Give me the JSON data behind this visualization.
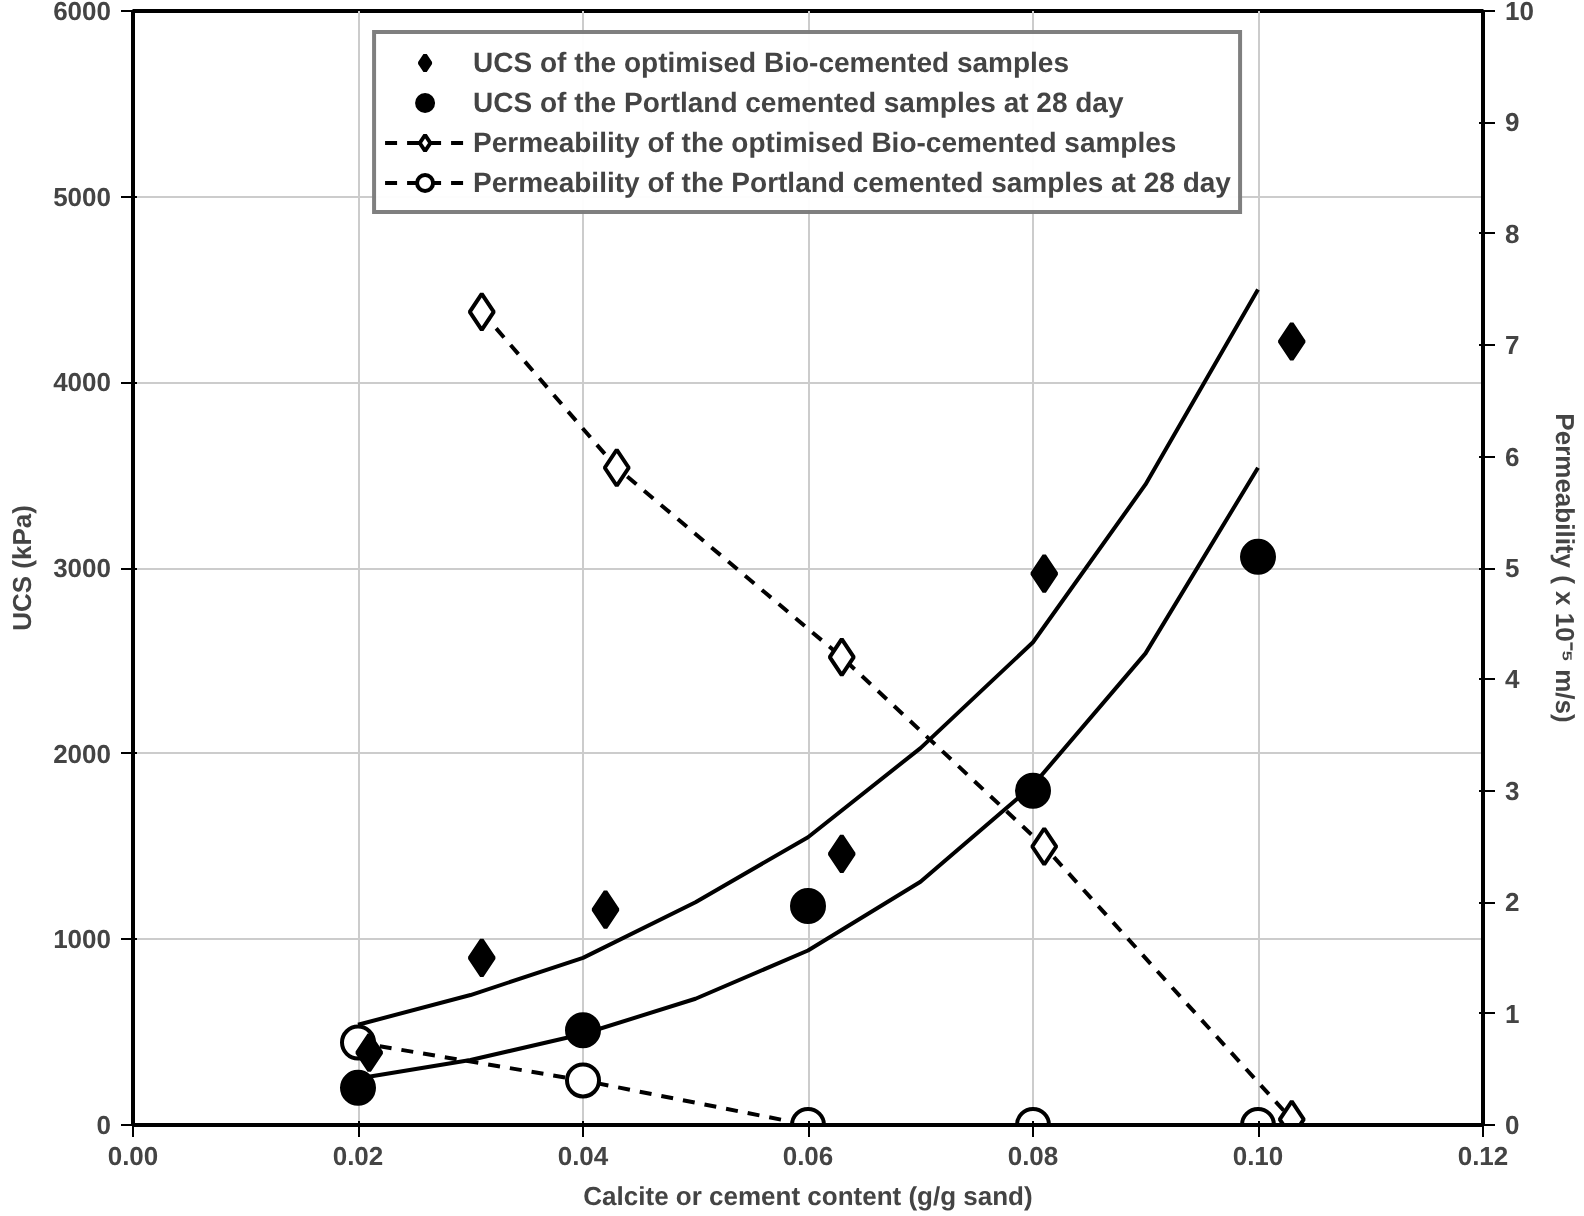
{
  "chart_data": {
    "type": "scatter",
    "xlabel": "Calcite or cement content (g/g sand)",
    "ylabel": "UCS (kPa)",
    "y2label": "Permeability ( x 10⁻⁵ m/s)",
    "xlim": [
      0,
      0.12
    ],
    "xticks": [
      {
        "value": 0,
        "label": "0.00"
      },
      {
        "value": 0.02,
        "label": "0.02"
      },
      {
        "value": 0.04,
        "label": "0.04"
      },
      {
        "value": 0.06,
        "label": "0.06"
      },
      {
        "value": 0.08,
        "label": "0.08"
      },
      {
        "value": 0.1,
        "label": "0.10"
      },
      {
        "value": 0.12,
        "label": "0.12"
      }
    ],
    "ylim": [
      0,
      6000
    ],
    "yticks": [
      0,
      1000,
      2000,
      3000,
      4000,
      5000,
      6000
    ],
    "y2lim": [
      0,
      10
    ],
    "y2ticks": [
      0,
      1,
      2,
      3,
      4,
      5,
      6,
      7,
      8,
      9,
      10
    ],
    "grid": true,
    "legend": "top",
    "series": [
      {
        "name": "UCS of the optimised Bio-cemented samples",
        "marker": "diamond",
        "color": "#000000",
        "x": [
          0.021,
          0.031,
          0.042,
          0.063,
          0.081,
          0.103
        ],
        "values": [
          390,
          900,
          1160,
          1460,
          2970,
          4220
        ]
      },
      {
        "name": "UCS of the Portland cemented samples at 28 day",
        "marker": "circle",
        "color": "#000000",
        "x": [
          0.02,
          0.04,
          0.06,
          0.08,
          0.1
        ],
        "values": [
          200,
          510,
          1180,
          1800,
          3060
        ]
      },
      {
        "name": "Permeability of the optimised Bio-cemented samples",
        "type": "line",
        "marker": "diamond",
        "line_style": "dashed",
        "axis": "y2",
        "color": "#000000",
        "x": [
          0.031,
          0.043,
          0.063,
          0.081,
          0.103
        ],
        "values": [
          7.3,
          5.9,
          4.2,
          2.5,
          0.05
        ]
      },
      {
        "name": "Permeability of the Portland cemented samples at 28 day",
        "type": "line",
        "marker": "circle",
        "line_style": "dashed",
        "axis": "y2",
        "color": "#000000",
        "x": [
          0.02,
          0.04,
          0.06,
          0.08,
          0.1
        ],
        "values": [
          0.74,
          0.4,
          0,
          0,
          0
        ]
      },
      {
        "type": "line",
        "marker": "none",
        "line_style": "solid",
        "color": "#000000",
        "x": [
          0.02,
          0.03,
          0.04,
          0.05,
          0.06,
          0.07,
          0.08,
          0.09,
          0.1
        ],
        "values": [
          540,
          700,
          900,
          1200,
          1550,
          2030,
          2600,
          3450,
          4500
        ]
      },
      {
        "type": "line",
        "marker": "none",
        "line_style": "solid",
        "color": "#000000",
        "x": [
          0.02,
          0.03,
          0.04,
          0.05,
          0.06,
          0.07,
          0.08,
          0.09,
          0.1
        ],
        "values": [
          250,
          350,
          490,
          680,
          940,
          1310,
          1830,
          2540,
          3540
        ]
      }
    ]
  }
}
